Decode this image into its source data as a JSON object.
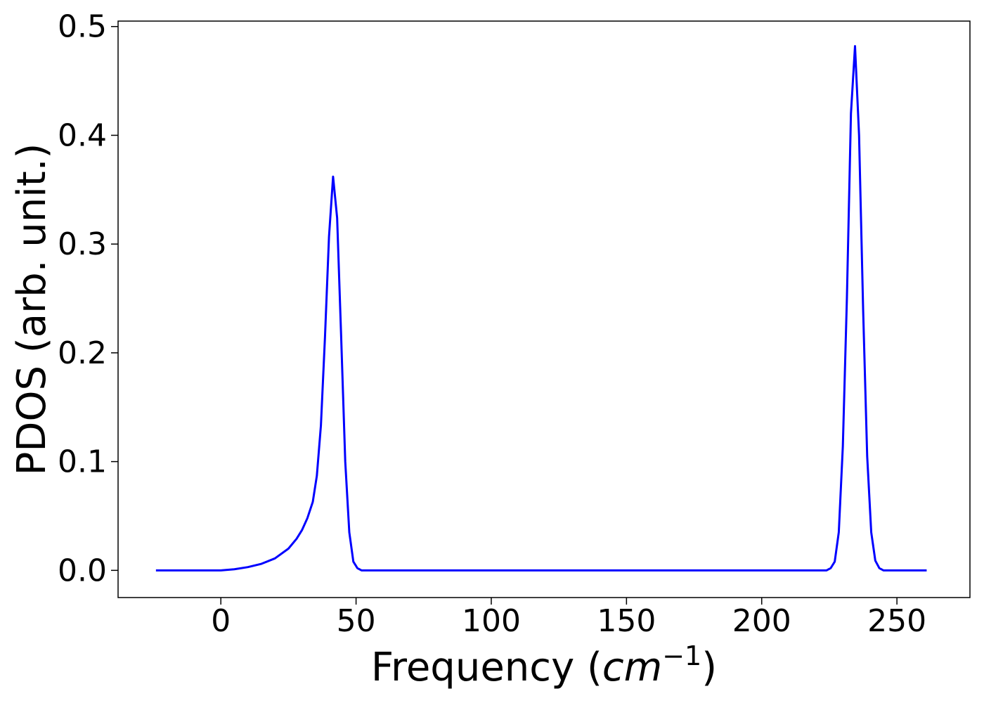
{
  "chart_data": {
    "type": "line",
    "title": "",
    "xlabel": "Frequency (",
    "xlabel_math": "cm",
    "xlabel_sup": "−1",
    "xlabel_close": ")",
    "ylabel": "PDOS (arb. unit.)",
    "xlim": [
      -38,
      277
    ],
    "ylim": [
      -0.025,
      0.505
    ],
    "xticks": [
      0,
      50,
      100,
      150,
      200,
      250
    ],
    "xtick_labels": [
      "0",
      "50",
      "100",
      "150",
      "200",
      "250"
    ],
    "yticks": [
      0.0,
      0.1,
      0.2,
      0.3,
      0.4,
      0.5
    ],
    "ytick_labels": [
      "0.0",
      "0.1",
      "0.2",
      "0.3",
      "0.4",
      "0.5"
    ],
    "grid": false,
    "legend": "none",
    "series": [
      {
        "color": "#0000ff",
        "x": [
          -24,
          0,
          5,
          10,
          15,
          20,
          25,
          28,
          30,
          32,
          34,
          35.5,
          37,
          38.5,
          40,
          41.5,
          43,
          44.5,
          46,
          47.5,
          49,
          50.5,
          52,
          55,
          100,
          150,
          200,
          224,
          225.5,
          227,
          228.5,
          230,
          231.5,
          233,
          234.5,
          236,
          237.5,
          239,
          240.5,
          242,
          243.5,
          245,
          250,
          261
        ],
        "y": [
          0.0,
          0.0,
          0.001,
          0.003,
          0.006,
          0.011,
          0.02,
          0.029,
          0.037,
          0.048,
          0.063,
          0.087,
          0.133,
          0.214,
          0.307,
          0.362,
          0.324,
          0.214,
          0.1,
          0.035,
          0.008,
          0.002,
          0.0,
          0.0,
          0.0,
          0.0,
          0.0,
          0.0,
          0.002,
          0.008,
          0.035,
          0.114,
          0.25,
          0.42,
          0.482,
          0.4,
          0.24,
          0.105,
          0.035,
          0.009,
          0.002,
          0.0,
          0.0,
          0.0
        ]
      }
    ]
  }
}
